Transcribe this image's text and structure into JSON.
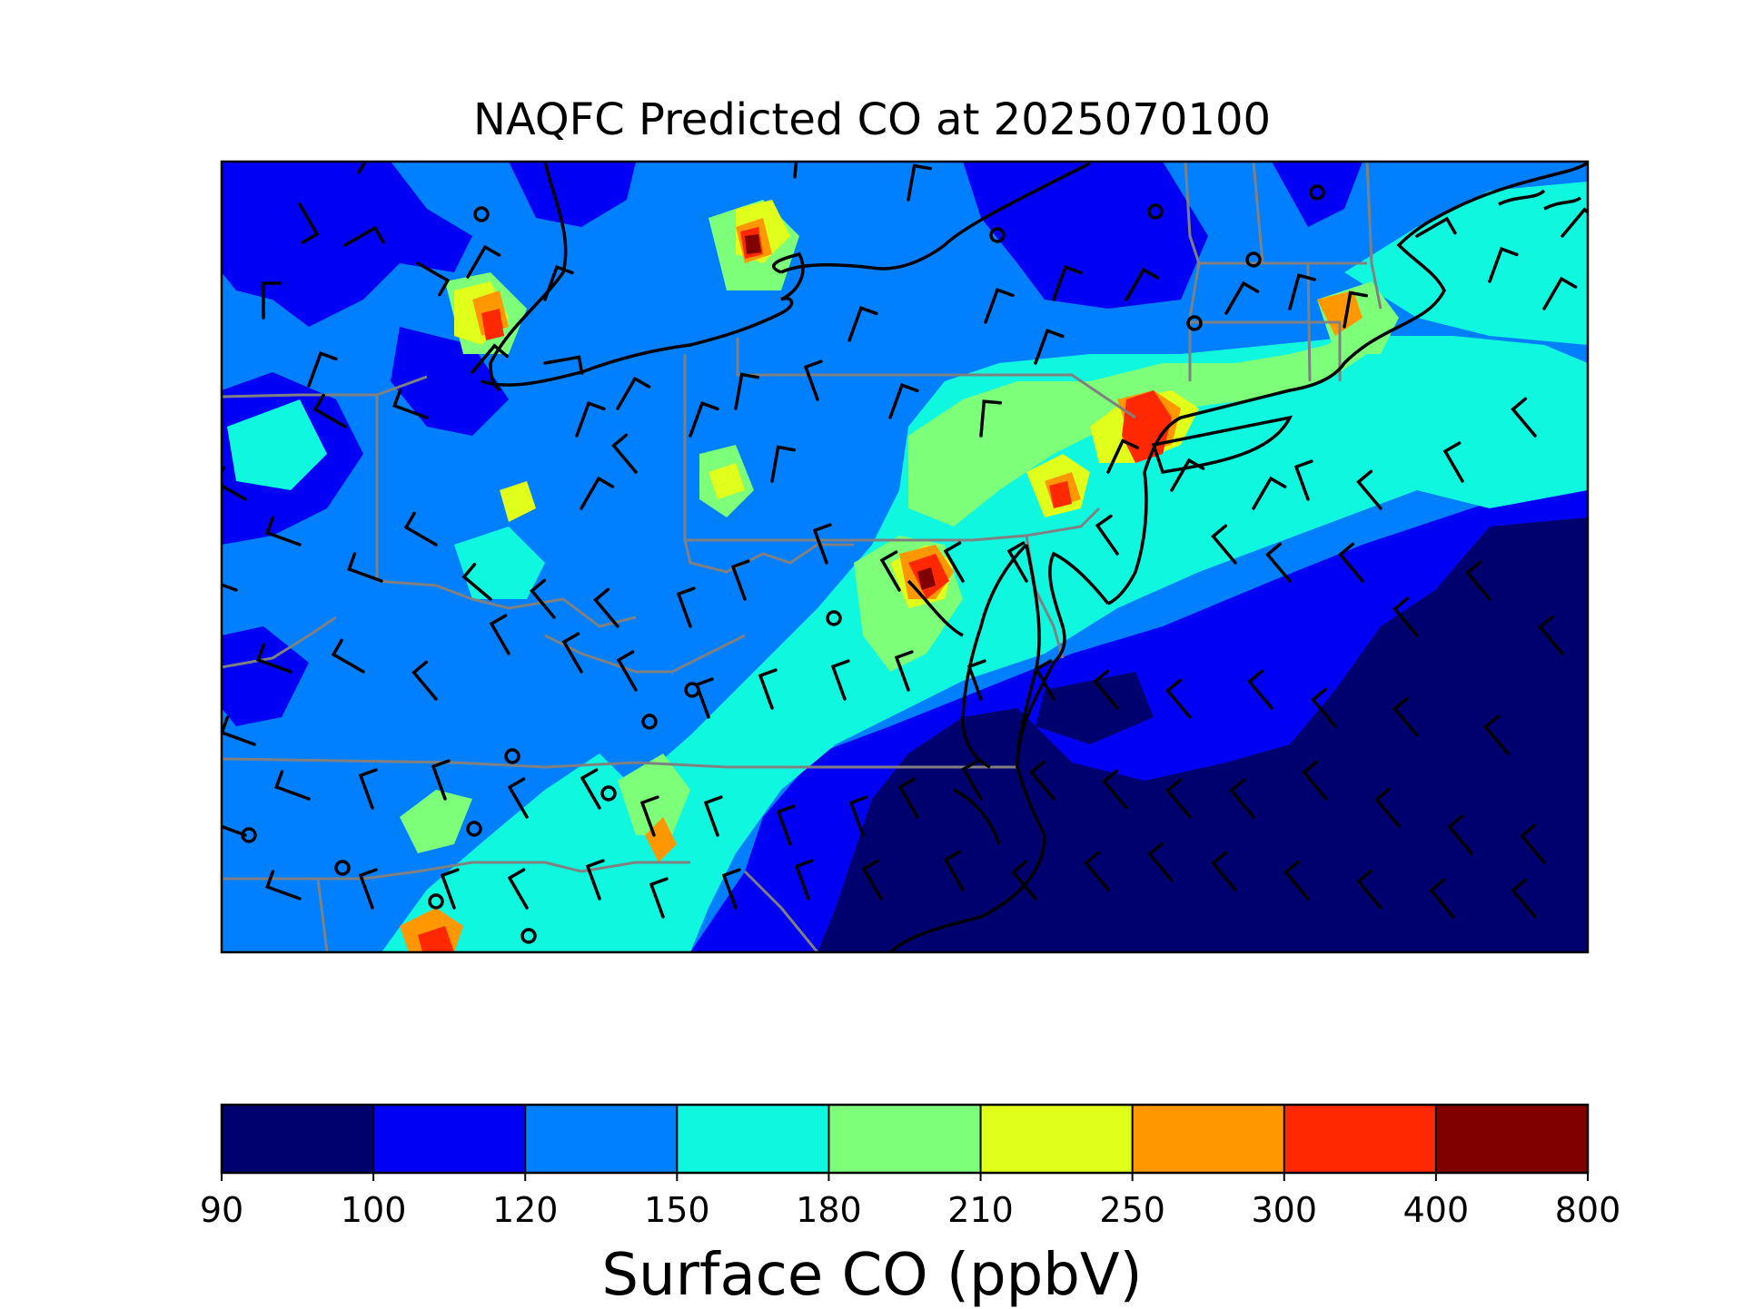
{
  "title": "NAQFC Predicted CO at 2025070100",
  "colorbar": {
    "label": "Surface CO (ppbV)",
    "boundaries": [
      "90",
      "100",
      "120",
      "150",
      "180",
      "210",
      "250",
      "300",
      "400",
      "800"
    ],
    "colors": [
      "#00006e",
      "#0000f5",
      "#0080ff",
      "#10f7e0",
      "#7dff7a",
      "#e0ff1a",
      "#ff9800",
      "#ff2800",
      "#800000"
    ]
  },
  "map": {
    "region": "Northeastern United States",
    "field": "Surface CO (ppbV)",
    "features": [
      "state-borders",
      "coastline",
      "wind-barbs",
      "calm-wind-circles"
    ]
  }
}
